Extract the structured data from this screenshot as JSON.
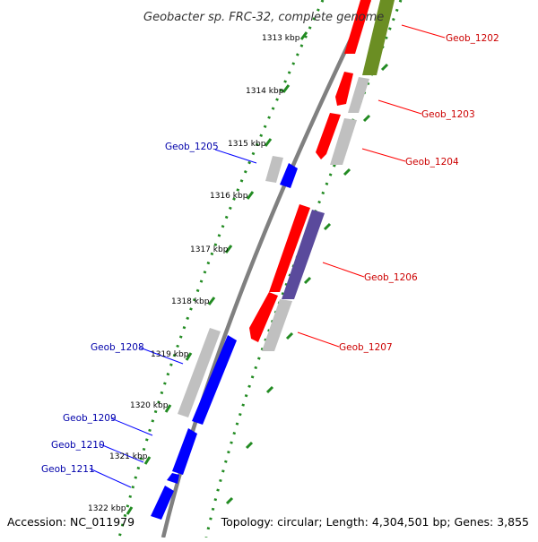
{
  "title": "Geobacter sp. FRC-32, complete genome",
  "accession": "Accession: NC_011979",
  "topology": "Topology: circular; Length: 4,304,501 bp; Genes: 3,855",
  "colors": {
    "backbone": "#808080",
    "forward_gene": "#ff0000",
    "reverse_gene": "#0000ff",
    "pseudo_or_other": "#c0c0c0",
    "forward_label": "#cc0000",
    "reverse_label": "#0000aa",
    "cds_green": "#6b8e23",
    "cds_purple": "#5a4a9c",
    "dots": "#228b22"
  },
  "kbp_ticks": [
    "1313 kbp",
    "1314 kbp",
    "1315 kbp",
    "1316 kbp",
    "1317 kbp",
    "1318 kbp",
    "1319 kbp",
    "1320 kbp",
    "1321 kbp",
    "1322 kbp"
  ],
  "gene_labels": {
    "forward": [
      "Geob_1202",
      "Geob_1203",
      "Geob_1204",
      "Geob_1206",
      "Geob_1207"
    ],
    "reverse": [
      "Geob_1205",
      "Geob_1208",
      "Geob_1209",
      "Geob_1210",
      "Geob_1211"
    ]
  }
}
